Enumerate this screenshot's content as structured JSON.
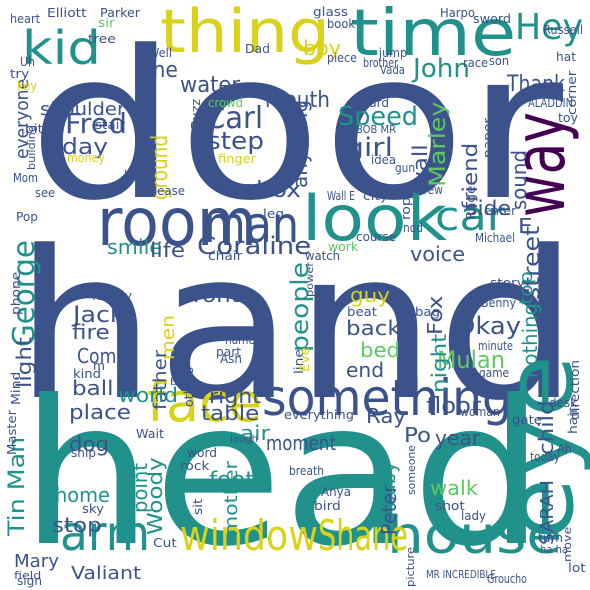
{
  "palette": {
    "background": "#ffffff",
    "dark_purple": "#440154",
    "blue": "#3b528b",
    "teal": "#21918c",
    "green": "#5ec962",
    "yellow": "#d8d219"
  },
  "words": [
    {
      "text": "door",
      "color": "#3b528b"
    },
    {
      "text": "hand",
      "color": "#3b528b"
    },
    {
      "text": "head",
      "color": "#21918c"
    },
    {
      "text": "time",
      "color": "#21918c"
    },
    {
      "text": "thing",
      "color": "#d8d219"
    },
    {
      "text": "eye",
      "color": "#21918c"
    },
    {
      "text": "room",
      "color": "#3b528b"
    },
    {
      "text": "look",
      "color": "#21918c"
    },
    {
      "text": "way",
      "color": "#440154"
    },
    {
      "text": "face",
      "color": "#d8d219"
    },
    {
      "text": "something",
      "color": "#3b528b"
    },
    {
      "text": "man",
      "color": "#3b528b"
    },
    {
      "text": "house",
      "color": "#21918c"
    },
    {
      "text": "window",
      "color": "#d8d219"
    },
    {
      "text": "Shane",
      "color": "#d8d219"
    },
    {
      "text": "arm",
      "color": "#21918c"
    },
    {
      "text": "kid",
      "color": "#21918c"
    },
    {
      "text": "Hey",
      "color": "#21918c"
    },
    {
      "text": "car",
      "color": "#21918c"
    },
    {
      "text": "George",
      "color": "#21918c"
    },
    {
      "text": "Coraline",
      "color": "#3b528b"
    },
    {
      "text": "Carl",
      "color": "#3b528b"
    },
    {
      "text": "Speed",
      "color": "#21918c"
    },
    {
      "text": "Marley",
      "color": "#5ec962"
    },
    {
      "text": "John",
      "color": "#21918c"
    },
    {
      "text": "Fred",
      "color": "#3b528b"
    },
    {
      "text": "people",
      "color": "#21918c"
    },
    {
      "text": "girl",
      "color": "#3b528b"
    },
    {
      "text": "step",
      "color": "#3b528b"
    },
    {
      "text": "Okay",
      "color": "#3b528b"
    },
    {
      "text": "Mulan",
      "color": "#5ec962"
    },
    {
      "text": "Tin Man",
      "color": "#21918c"
    },
    {
      "text": "Jack",
      "color": "#3b528b"
    },
    {
      "text": "floor",
      "color": "#3b528b"
    },
    {
      "text": "mouth",
      "color": "#3b528b"
    },
    {
      "text": "water",
      "color": "#3b528b"
    },
    {
      "text": "one",
      "color": "#3b528b"
    },
    {
      "text": "box",
      "color": "#3b528b"
    },
    {
      "text": "boy",
      "color": "#d8d219"
    },
    {
      "text": "Thank",
      "color": "#3b528b"
    },
    {
      "text": "day",
      "color": "#3b528b"
    },
    {
      "text": "ground",
      "color": "#d8d219"
    },
    {
      "text": "anything",
      "color": "#3b528b"
    },
    {
      "text": "wall",
      "color": "#3b528b"
    },
    {
      "text": "friend",
      "color": "#3b528b"
    },
    {
      "text": "sound",
      "color": "#3b528b"
    },
    {
      "text": "side",
      "color": "#3b528b"
    },
    {
      "text": "E",
      "color": "#3b528b"
    },
    {
      "text": "street",
      "color": "#3b528b"
    },
    {
      "text": "smile",
      "color": "#21918c"
    },
    {
      "text": "life",
      "color": "#3b528b"
    },
    {
      "text": "voice",
      "color": "#3b528b"
    },
    {
      "text": "guy",
      "color": "#d8d219"
    },
    {
      "text": "Fox",
      "color": "#3b528b"
    },
    {
      "text": "night",
      "color": "#21918c"
    },
    {
      "text": "nothing",
      "color": "#21918c"
    },
    {
      "text": "top",
      "color": "#21918c"
    },
    {
      "text": "front",
      "color": "#3b528b"
    },
    {
      "text": "fire",
      "color": "#3b528b"
    },
    {
      "text": "light",
      "color": "#3b528b"
    },
    {
      "text": "men",
      "color": "#d8d219"
    },
    {
      "text": "father",
      "color": "#3b528b"
    },
    {
      "text": "back",
      "color": "#3b528b"
    },
    {
      "text": "bed",
      "color": "#5ec962"
    },
    {
      "text": "end",
      "color": "#3b528b"
    },
    {
      "text": "Come",
      "color": "#3b528b"
    },
    {
      "text": "ball",
      "color": "#3b528b"
    },
    {
      "text": "place",
      "color": "#3b528b"
    },
    {
      "text": "right",
      "color": "#3b528b"
    },
    {
      "text": "world",
      "color": "#21918c"
    },
    {
      "text": "table",
      "color": "#3b528b"
    },
    {
      "text": "air",
      "color": "#21918c"
    },
    {
      "text": "Ray",
      "color": "#3b528b"
    },
    {
      "text": "Po",
      "color": "#3b528b"
    },
    {
      "text": "child",
      "color": "#3b528b"
    },
    {
      "text": "dog",
      "color": "#3b528b"
    },
    {
      "text": "point",
      "color": "#21918c"
    },
    {
      "text": "Woody",
      "color": "#21918c"
    },
    {
      "text": "moment",
      "color": "#3b528b"
    },
    {
      "text": "year",
      "color": "#3b528b"
    },
    {
      "text": "walk",
      "color": "#5ec962"
    },
    {
      "text": "home",
      "color": "#21918c"
    },
    {
      "text": "foot",
      "color": "#21918c"
    },
    {
      "text": "stop",
      "color": "#3b528b"
    },
    {
      "text": "mother",
      "color": "#21918c"
    },
    {
      "text": "baby",
      "color": "#21918c"
    },
    {
      "text": "Peter",
      "color": "#3b528b"
    },
    {
      "text": "SARAH",
      "color": "#3b528b"
    },
    {
      "text": "Mary",
      "color": "#3b528b"
    },
    {
      "text": "Valiant",
      "color": "#3b528b"
    },
    {
      "text": "everyone",
      "color": "#3b528b"
    },
    {
      "text": "shoulder",
      "color": "#3b528b"
    },
    {
      "text": "Elliott",
      "color": "#3b528b"
    },
    {
      "text": "Parker",
      "color": "#3b528b"
    },
    {
      "text": "heart",
      "color": "#3b528b"
    },
    {
      "text": "sir",
      "color": "#5ec962"
    },
    {
      "text": "glass",
      "color": "#3b528b"
    },
    {
      "text": "book",
      "color": "#3b528b"
    },
    {
      "text": "Harpo",
      "color": "#3b528b"
    },
    {
      "text": "sword",
      "color": "#3b528b"
    },
    {
      "text": "Russell",
      "color": "#3b528b"
    },
    {
      "text": "Vada",
      "color": "#3b528b"
    },
    {
      "text": "jump",
      "color": "#3b528b"
    },
    {
      "text": "tree",
      "color": "#3b528b"
    },
    {
      "text": "Well",
      "color": "#3b528b"
    },
    {
      "text": "Dad",
      "color": "#3b528b"
    },
    {
      "text": "piece",
      "color": "#3b528b"
    },
    {
      "text": "race",
      "color": "#3b528b"
    },
    {
      "text": "son",
      "color": "#3b528b"
    },
    {
      "text": "hat",
      "color": "#3b528b"
    },
    {
      "text": "corner",
      "color": "#3b528b"
    },
    {
      "text": "brother",
      "color": "#3b528b"
    },
    {
      "text": "try",
      "color": "#3b528b"
    },
    {
      "text": "key",
      "color": "#d8d219"
    },
    {
      "text": "Uh",
      "color": "#3b528b"
    },
    {
      "text": "stair",
      "color": "#3b528b"
    },
    {
      "text": "crowd",
      "color": "#5ec962"
    },
    {
      "text": "Buzz",
      "color": "#3b528b"
    },
    {
      "text": "guard",
      "color": "#3b528b"
    },
    {
      "text": "ALADDIN",
      "color": "#3b528b"
    },
    {
      "text": "BOB MR",
      "color": "#3b528b"
    },
    {
      "text": "toy",
      "color": "#3b528b"
    },
    {
      "text": "paper",
      "color": "#3b528b"
    },
    {
      "text": "bit",
      "color": "#3b528b"
    },
    {
      "text": "building",
      "color": "#3b528b"
    },
    {
      "text": "money",
      "color": "#d8d219"
    },
    {
      "text": "finger",
      "color": "#d8d219"
    },
    {
      "text": "idea",
      "color": "#3b528b"
    },
    {
      "text": "gun",
      "color": "#3b528b"
    },
    {
      "text": "Mom",
      "color": "#3b528b"
    },
    {
      "text": "huh",
      "color": "#3b528b"
    },
    {
      "text": "see",
      "color": "#3b528b"
    },
    {
      "text": "Please",
      "color": "#3b528b"
    },
    {
      "text": "scream",
      "color": "#3b528b"
    },
    {
      "text": "Wall E",
      "color": "#3b528b"
    },
    {
      "text": "city",
      "color": "#3b528b"
    },
    {
      "text": "Roger",
      "color": "#3b528b"
    },
    {
      "text": "Drew",
      "color": "#3b528b"
    },
    {
      "text": "rope",
      "color": "#3b528b"
    },
    {
      "text": "Pop",
      "color": "#3b528b"
    },
    {
      "text": "leg",
      "color": "#3b528b"
    },
    {
      "text": "nod",
      "color": "#3b528b"
    },
    {
      "text": "enter",
      "color": "#3b528b"
    },
    {
      "text": "Michael",
      "color": "#3b528b"
    },
    {
      "text": "chair",
      "color": "#3b528b"
    },
    {
      "text": "course",
      "color": "#3b528b"
    },
    {
      "text": "work",
      "color": "#5ec962"
    },
    {
      "text": "phone",
      "color": "#3b528b"
    },
    {
      "text": "watch",
      "color": "#3b528b"
    },
    {
      "text": "power",
      "color": "#3b528b"
    },
    {
      "text": "family",
      "color": "#3b528b"
    },
    {
      "text": "ear",
      "color": "#3b528b"
    },
    {
      "text": "story",
      "color": "#3b528b"
    },
    {
      "text": "Benny",
      "color": "#3b528b"
    },
    {
      "text": "beat",
      "color": "#3b528b"
    },
    {
      "text": "scene",
      "color": "#3b528b"
    },
    {
      "text": "bag",
      "color": "#3b528b"
    },
    {
      "text": "minute",
      "color": "#3b528b"
    },
    {
      "text": "name",
      "color": "#3b528b"
    },
    {
      "text": "part",
      "color": "#3b528b"
    },
    {
      "text": "Ash",
      "color": "#3b528b"
    },
    {
      "text": "line",
      "color": "#3b528b"
    },
    {
      "text": "Eve",
      "color": "#d8d219"
    },
    {
      "text": "direction",
      "color": "#3b528b"
    },
    {
      "text": "Mind",
      "color": "#3b528b"
    },
    {
      "text": "kind",
      "color": "#3b528b"
    },
    {
      "text": "others",
      "color": "#3b528b"
    },
    {
      "text": "m",
      "color": "#3b528b"
    },
    {
      "text": "bar",
      "color": "#3b528b"
    },
    {
      "text": "game",
      "color": "#3b528b"
    },
    {
      "text": "Master",
      "color": "#3b528b"
    },
    {
      "text": "Wait",
      "color": "#3b528b"
    },
    {
      "text": "everything",
      "color": "#3b528b"
    },
    {
      "text": "woman",
      "color": "#3b528b"
    },
    {
      "text": "gate",
      "color": "#3b528b"
    },
    {
      "text": "desk",
      "color": "#3b528b"
    },
    {
      "text": "hair",
      "color": "#3b528b"
    },
    {
      "text": "word",
      "color": "#3b528b"
    },
    {
      "text": "laugh",
      "color": "#3b528b"
    },
    {
      "text": "rock",
      "color": "#3b528b"
    },
    {
      "text": "breath",
      "color": "#3b528b"
    },
    {
      "text": "Ah",
      "color": "#3b528b"
    },
    {
      "text": "today",
      "color": "#3b528b"
    },
    {
      "text": "ship",
      "color": "#3b528b"
    },
    {
      "text": "sky",
      "color": "#3b528b"
    },
    {
      "text": "Anya",
      "color": "#3b528b"
    },
    {
      "text": "bird",
      "color": "#3b528b"
    },
    {
      "text": "someone",
      "color": "#3b528b"
    },
    {
      "text": "shot",
      "color": "#3b528b"
    },
    {
      "text": "lady",
      "color": "#3b528b"
    },
    {
      "text": "sit",
      "color": "#3b528b"
    },
    {
      "text": "Cut",
      "color": "#3b528b"
    },
    {
      "text": "turn",
      "color": "#3b528b"
    },
    {
      "text": "ha ha",
      "color": "#3b528b"
    },
    {
      "text": "move",
      "color": "#3b528b"
    },
    {
      "text": "sign",
      "color": "#3b528b"
    },
    {
      "text": "picture",
      "color": "#3b528b"
    },
    {
      "text": "field",
      "color": "#3b528b"
    },
    {
      "text": "MR INCREDIBLE",
      "color": "#3b528b"
    },
    {
      "text": "Groucho",
      "color": "#3b528b"
    },
    {
      "text": "lot",
      "color": "#3b528b"
    }
  ]
}
